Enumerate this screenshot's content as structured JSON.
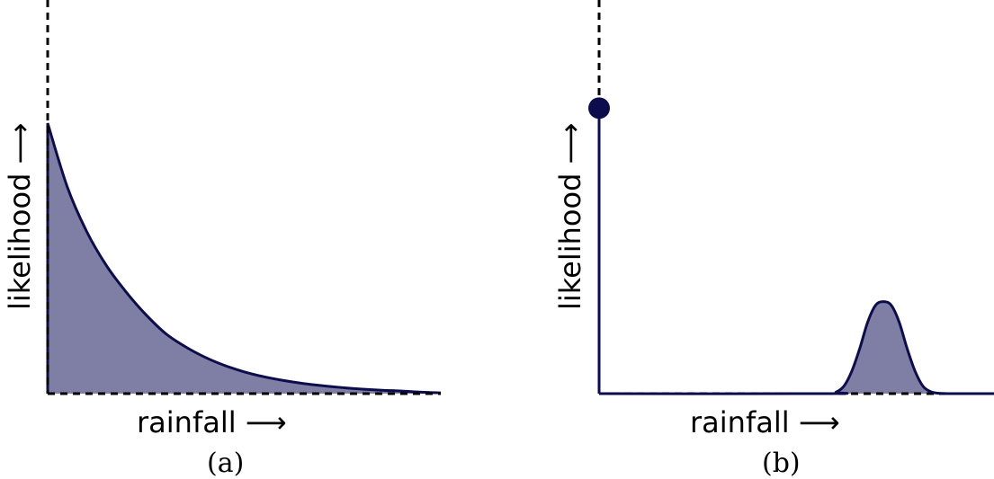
{
  "colors": {
    "line": "#0d0d4d",
    "fill": "#7f7fa6",
    "axis": "#000000"
  },
  "arrow_glyph": "⟶",
  "chart_data": [
    {
      "type": "area",
      "caption": "(a)",
      "xlabel": "rainfall",
      "ylabel": "likelihood",
      "xlim": [
        0,
        1
      ],
      "ylim": [
        0,
        1
      ],
      "x": [
        0,
        0.05,
        0.1,
        0.15,
        0.2,
        0.25,
        0.3,
        0.35,
        0.4,
        0.45,
        0.5,
        0.55,
        0.6,
        0.65,
        0.7,
        0.75,
        0.8,
        0.85,
        0.9,
        0.95,
        1.0
      ],
      "y": [
        0.72,
        0.55,
        0.43,
        0.34,
        0.27,
        0.21,
        0.16,
        0.125,
        0.097,
        0.075,
        0.058,
        0.045,
        0.035,
        0.027,
        0.021,
        0.016,
        0.012,
        0.009,
        0.007,
        0.004,
        0.002
      ],
      "grid": false
    },
    {
      "type": "area",
      "caption": "(b)",
      "xlabel": "rainfall",
      "ylabel": "likelihood",
      "xlim": [
        0,
        1
      ],
      "ylim": [
        0,
        1
      ],
      "point_mass": {
        "x": 0,
        "y": 0.76
      },
      "x": [
        0,
        0.58,
        0.6,
        0.62,
        0.64,
        0.66,
        0.68,
        0.7,
        0.72,
        0.74,
        0.76,
        0.78,
        0.8,
        0.82,
        0.84,
        0.86,
        0.9,
        1.0
      ],
      "y": [
        0,
        0,
        0.004,
        0.02,
        0.06,
        0.12,
        0.19,
        0.235,
        0.245,
        0.235,
        0.19,
        0.12,
        0.06,
        0.02,
        0.005,
        0.001,
        0.0,
        0.0
      ],
      "grid": false
    }
  ]
}
